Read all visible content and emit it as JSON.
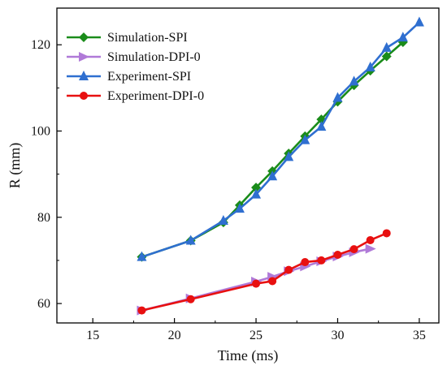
{
  "chart_data": {
    "type": "line",
    "title": "",
    "xlabel": "Time (ms)",
    "ylabel": "R (mm)",
    "xlim": [
      12.8,
      36.2
    ],
    "ylim": [
      55.5,
      128.5
    ],
    "xticks": [
      15,
      20,
      25,
      30,
      35
    ],
    "yticks": [
      60,
      80,
      100,
      120
    ],
    "grid": false,
    "legend_position": "top-left",
    "series": [
      {
        "name": "Simulation-SPI",
        "color": "#1a8c1a",
        "marker": "diamond",
        "x": [
          18,
          21,
          23,
          24,
          25,
          26,
          27,
          28,
          29,
          30,
          31,
          32,
          33,
          34
        ],
        "y": [
          70.8,
          74.6,
          78.8,
          82.8,
          86.9,
          90.7,
          94.8,
          98.8,
          102.7,
          106.8,
          110.6,
          114.0,
          117.3,
          120.6
        ]
      },
      {
        "name": "Simulation-DPI-0",
        "color": "#b07ad8",
        "marker": "triangle-right",
        "x": [
          18,
          21,
          25,
          26,
          27,
          28,
          29,
          30,
          31,
          32
        ],
        "y": [
          58.4,
          61.2,
          65.1,
          66.2,
          67.5,
          68.6,
          69.8,
          70.9,
          71.9,
          72.7
        ]
      },
      {
        "name": "Experiment-SPI",
        "color": "#2f6fd0",
        "marker": "triangle-up",
        "x": [
          18,
          21,
          23,
          24,
          25,
          26,
          27,
          28,
          29,
          30,
          31,
          32,
          33,
          34,
          35
        ],
        "y": [
          70.8,
          74.6,
          79.2,
          82.0,
          85.3,
          89.5,
          94.0,
          97.9,
          101.0,
          107.7,
          111.5,
          114.8,
          119.3,
          121.7,
          125.2
        ]
      },
      {
        "name": "Experiment-DPI-0",
        "color": "#e81010",
        "marker": "circle",
        "x": [
          18,
          21,
          25,
          26,
          27,
          28,
          29,
          30,
          31,
          32,
          33
        ],
        "y": [
          58.4,
          61.0,
          64.6,
          65.2,
          67.8,
          69.6,
          70.0,
          71.3,
          72.6,
          74.7,
          76.3
        ]
      }
    ]
  }
}
